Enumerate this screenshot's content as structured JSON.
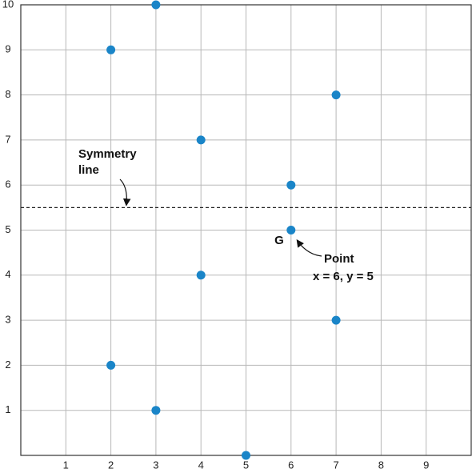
{
  "chart_data": {
    "type": "scatter",
    "x": [
      2,
      3,
      7,
      4,
      6,
      6,
      4,
      7,
      2,
      3,
      5
    ],
    "y": [
      9,
      10,
      8,
      7,
      6,
      5,
      4,
      3,
      2,
      1,
      0
    ],
    "color": "#1a85c8",
    "xlim": [
      0,
      10
    ],
    "ylim": [
      0,
      10
    ],
    "xticks": [
      1,
      2,
      3,
      4,
      5,
      6,
      7,
      8,
      9
    ],
    "yticks": [
      1,
      2,
      3,
      4,
      5,
      6,
      7,
      8,
      9,
      10
    ],
    "grid": true,
    "reference_line": {
      "y": 5.5,
      "label_lines": [
        "Symmetry",
        "line"
      ]
    },
    "point_label": "G",
    "point_annotation_lines": [
      "Point",
      "x = 6, y = 5"
    ]
  }
}
